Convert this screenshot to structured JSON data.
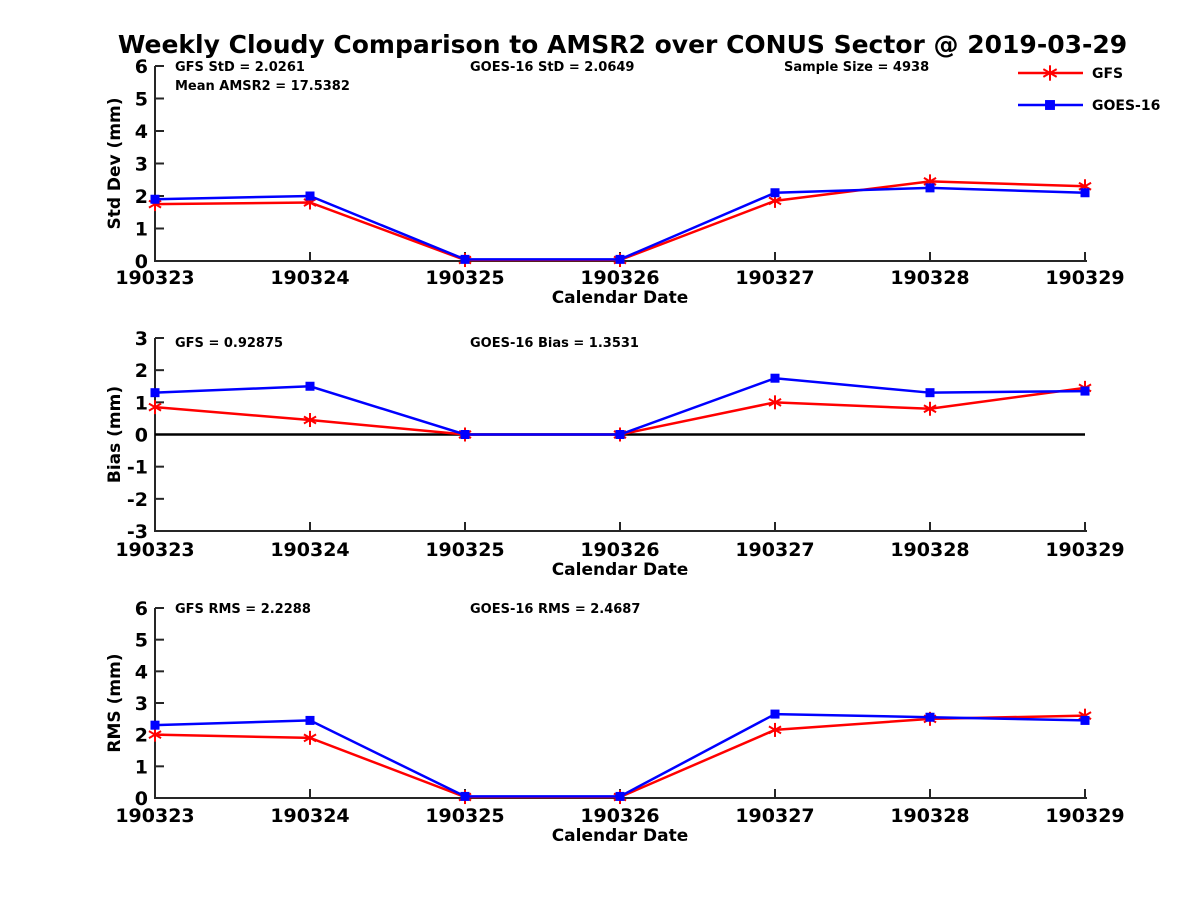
{
  "title": "Weekly Cloudy Comparison to AMSR2 over CONUS Sector @ 2019-03-29",
  "colors": {
    "gfs": "#ff0000",
    "goes16": "#0000ff",
    "axis": "#262626",
    "text": "#000000",
    "zero_line": "#000000"
  },
  "legend": {
    "position": "top-right",
    "entries": [
      {
        "label": "GFS",
        "color": "#ff0000",
        "marker": "asterisk"
      },
      {
        "label": "GOES-16",
        "color": "#0000ff",
        "marker": "square"
      }
    ]
  },
  "chart_data": [
    {
      "type": "line",
      "name": "std-dev-plot",
      "ylabel": "Std Dev (mm)",
      "xlabel": "Calendar Date",
      "ylim": [
        0,
        6
      ],
      "yticks": [
        0,
        1,
        2,
        3,
        4,
        5,
        6
      ],
      "grid": false,
      "categories": [
        "190323",
        "190324",
        "190325",
        "190326",
        "190327",
        "190328",
        "190329"
      ],
      "annotations": [
        "GFS StD = 2.0261",
        "Mean AMSR2 = 17.5382",
        "GOES-16 StD = 2.0649",
        "Sample Size = 4938"
      ],
      "series": [
        {
          "name": "GFS",
          "color": "#ff0000",
          "marker": "asterisk",
          "values": [
            1.75,
            1.8,
            0.03,
            0.03,
            1.85,
            2.45,
            2.3
          ]
        },
        {
          "name": "GOES-16",
          "color": "#0000ff",
          "marker": "square",
          "values": [
            1.9,
            2.0,
            0.05,
            0.05,
            2.1,
            2.25,
            2.1
          ]
        }
      ]
    },
    {
      "type": "line",
      "name": "bias-plot",
      "ylabel": "Bias (mm)",
      "xlabel": "Calendar Date",
      "ylim": [
        -3,
        3
      ],
      "yticks": [
        -3,
        -2,
        -1,
        0,
        1,
        2,
        3
      ],
      "zero_line": true,
      "grid": false,
      "categories": [
        "190323",
        "190324",
        "190325",
        "190326",
        "190327",
        "190328",
        "190329"
      ],
      "annotations": [
        "GFS = 0.92875",
        "GOES-16 Bias  = 1.3531"
      ],
      "series": [
        {
          "name": "GFS",
          "color": "#ff0000",
          "marker": "asterisk",
          "values": [
            0.85,
            0.45,
            0.0,
            0.0,
            1.0,
            0.8,
            1.45
          ]
        },
        {
          "name": "GOES-16",
          "color": "#0000ff",
          "marker": "square",
          "values": [
            1.3,
            1.5,
            0.0,
            0.0,
            1.75,
            1.3,
            1.35
          ]
        }
      ]
    },
    {
      "type": "line",
      "name": "rms-plot",
      "ylabel": "RMS (mm)",
      "xlabel": "Calendar Date",
      "ylim": [
        0,
        6
      ],
      "yticks": [
        0,
        1,
        2,
        3,
        4,
        5,
        6
      ],
      "grid": false,
      "categories": [
        "190323",
        "190324",
        "190325",
        "190326",
        "190327",
        "190328",
        "190329"
      ],
      "annotations": [
        "GFS RMS = 2.2288",
        "GOES-16 RMS = 2.4687"
      ],
      "series": [
        {
          "name": "GFS",
          "color": "#ff0000",
          "marker": "asterisk",
          "values": [
            2.0,
            1.9,
            0.03,
            0.03,
            2.15,
            2.5,
            2.6
          ]
        },
        {
          "name": "GOES-16",
          "color": "#0000ff",
          "marker": "square",
          "values": [
            2.3,
            2.45,
            0.05,
            0.05,
            2.65,
            2.55,
            2.45
          ]
        }
      ]
    }
  ]
}
